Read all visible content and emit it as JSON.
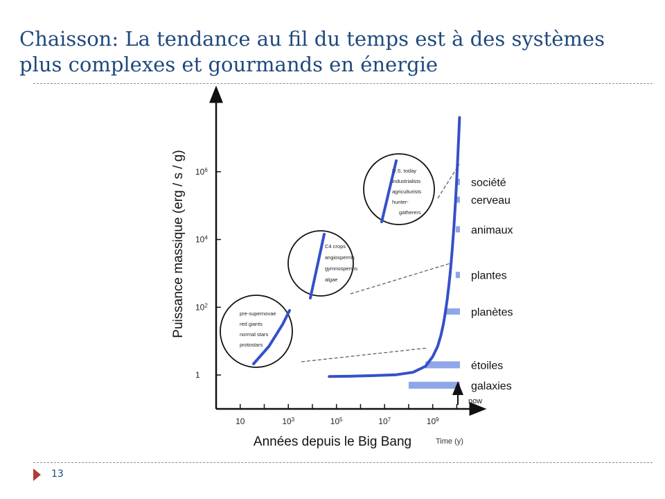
{
  "slide": {
    "title": "Chaisson: La tendance au fil du temps est à des systèmes plus complexes et gourmands en énergie",
    "page_number": "13",
    "colors": {
      "title": "#1f497d",
      "curve": "#3550c9",
      "band": "#8fa6e8",
      "footer_marker": "#b03a3a"
    }
  },
  "chart_data": {
    "type": "line",
    "title": "",
    "xlabel": "Années depuis le Big Bang",
    "xlabel_original": "Time (y)",
    "ylabel": "Puissance massique (erg / s / g)",
    "x_scale": "log",
    "y_scale": "log",
    "xlim": [
      1,
      30000000000
    ],
    "ylim": [
      0.1,
      100000000
    ],
    "x_ticks": [
      {
        "value": 10,
        "label": "10",
        "exp": ""
      },
      {
        "value": 1000,
        "label": "10",
        "exp": "3"
      },
      {
        "value": 100000,
        "label": "10",
        "exp": "5"
      },
      {
        "value": 10000000,
        "label": "10",
        "exp": "7"
      },
      {
        "value": 1000000000,
        "label": "10",
        "exp": "9"
      }
    ],
    "y_ticks": [
      {
        "value": 1,
        "label": "1",
        "exp": ""
      },
      {
        "value": 100,
        "label": "10",
        "exp": "2"
      },
      {
        "value": 10000,
        "label": "10",
        "exp": "4"
      },
      {
        "value": 1000000,
        "label": "10",
        "exp": "6"
      }
    ],
    "now_label": "now",
    "grid": false,
    "series": [
      {
        "x": [
          50000,
          300000,
          3000000,
          30000000,
          150000000,
          500000000,
          1000000000,
          1600000000,
          2200000000,
          2800000000,
          3400000000,
          4000000000,
          4600000000,
          5200000000,
          5800000000,
          6400000000,
          7000000000,
          7600000000,
          8200000000,
          8800000000,
          9400000000,
          10000000000,
          10600000000,
          11200000000,
          11800000000,
          12400000000,
          13000000000
        ],
        "y": [
          0.9,
          0.92,
          0.96,
          1.02,
          1.2,
          1.8,
          3.5,
          7,
          15,
          33,
          75,
          170,
          390,
          890,
          2000,
          4600,
          10500,
          24000,
          55000,
          125000,
          285000,
          650000,
          1500000,
          3400000,
          7800000,
          18000000,
          40000000
        ]
      }
    ],
    "bands": [
      {
        "label": "galaxies",
        "value": 0.5,
        "x_start": 100000000
      },
      {
        "label": "étoiles",
        "value": 2,
        "x_start": 500000000
      },
      {
        "label": "planètes",
        "value": 75,
        "x_start": 3000000000
      },
      {
        "label": "plantes",
        "value": 900,
        "x_start": 9000000000
      },
      {
        "label": "animaux",
        "value": 20000,
        "x_start": 11000000000
      },
      {
        "label": "cerveau",
        "value": 150000,
        "x_start": 11000000000
      },
      {
        "label": "société",
        "value": 500000,
        "x_start": 12000000000
      }
    ],
    "insets": [
      {
        "name": "stars",
        "labels": [
          "pre-supernovae",
          "red giants",
          "normal stars",
          "protostars"
        ]
      },
      {
        "name": "plants",
        "labels": [
          "C4 crops",
          "angiosperms",
          "gymnosperms",
          "algae"
        ]
      },
      {
        "name": "society",
        "labels": [
          "U.S. today",
          "industrialists",
          "agriculturists",
          "hunter-",
          "gatherers"
        ]
      }
    ]
  }
}
